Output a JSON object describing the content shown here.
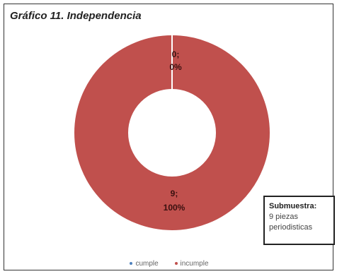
{
  "chart_data": {
    "type": "pie",
    "title": "Gráfico 11. Independencia",
    "categories": [
      "cumple",
      "incumple"
    ],
    "values": [
      0,
      9
    ],
    "percentages": [
      "0%",
      "100%"
    ],
    "data_labels": [
      {
        "category": "cumple",
        "value_text": "0;",
        "percent_text": "0%"
      },
      {
        "category": "incumple",
        "value_text": "9;",
        "percent_text": "100%"
      }
    ],
    "legend_position": "bottom",
    "note": {
      "title": "Submuestra:",
      "lines": [
        "9 piezas",
        "periodisticas"
      ]
    }
  },
  "colors": {
    "cumple": "#4f81bd",
    "incumple": "#c0504d"
  }
}
